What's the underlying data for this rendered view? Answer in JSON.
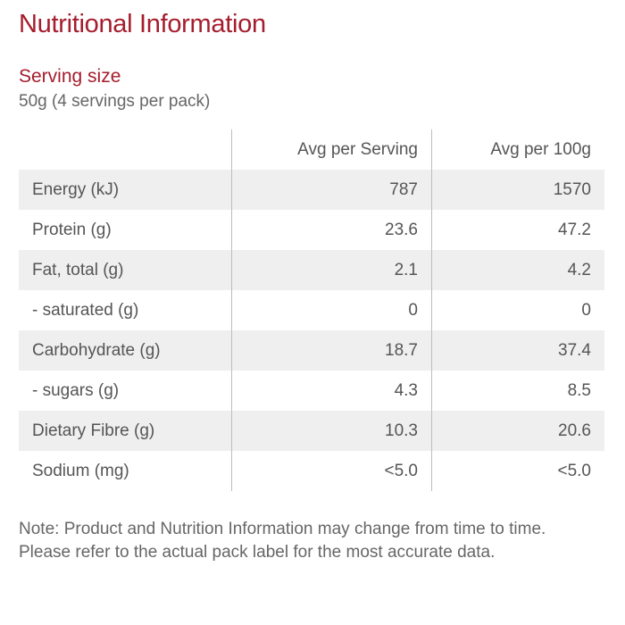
{
  "title": "Nutritional Information",
  "serving": {
    "label": "Serving size",
    "value": "50g (4 servings per pack)"
  },
  "table": {
    "headers": {
      "name": "",
      "per_serving": "Avg per Serving",
      "per_100g": "Avg per 100g"
    },
    "rows": [
      {
        "name": "Energy (kJ)",
        "per_serving": "787",
        "per_100g": "1570"
      },
      {
        "name": "Protein (g)",
        "per_serving": "23.6",
        "per_100g": "47.2"
      },
      {
        "name": "Fat, total (g)",
        "per_serving": "2.1",
        "per_100g": "4.2"
      },
      {
        "name": "- saturated (g)",
        "per_serving": "0",
        "per_100g": "0"
      },
      {
        "name": "Carbohydrate (g)",
        "per_serving": "18.7",
        "per_100g": "37.4"
      },
      {
        "name": "- sugars (g)",
        "per_serving": "4.3",
        "per_100g": "8.5"
      },
      {
        "name": "Dietary Fibre (g)",
        "per_serving": "10.3",
        "per_100g": "20.6"
      },
      {
        "name": "Sodium (mg)",
        "per_serving": "<5.0",
        "per_100g": "<5.0"
      }
    ]
  },
  "note": "Note: Product and Nutrition Information may change from time to time. Please refer to the actual pack label for the most accurate data.",
  "colors": {
    "accent": "#a51d2d",
    "row_shade": "#efefef",
    "text": "#555555"
  }
}
